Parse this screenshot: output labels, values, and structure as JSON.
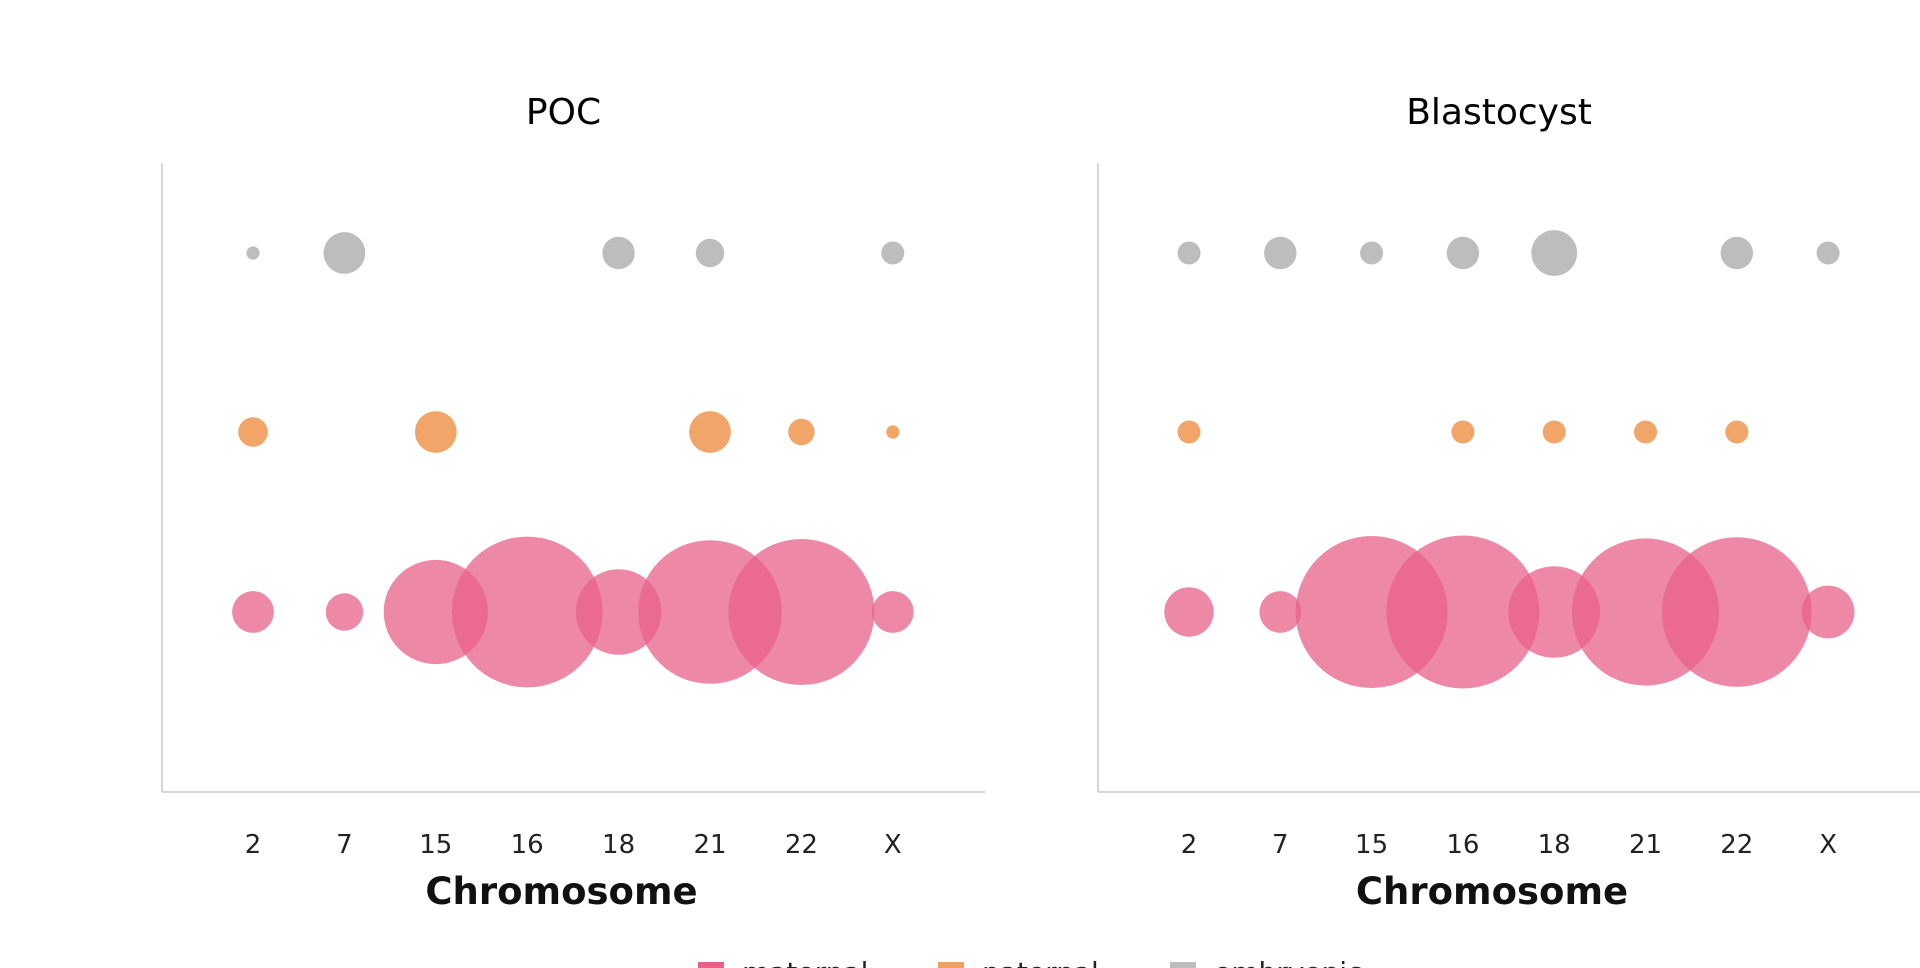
{
  "colors": {
    "maternal": "#e8608a",
    "paternal": "#f0a060",
    "embryonic": "#bdbdbd",
    "axis": "#c8c8c8"
  },
  "legend": {
    "items": [
      {
        "key": "maternal",
        "label": "maternal"
      },
      {
        "key": "paternal",
        "label": "paternal"
      },
      {
        "key": "embryonic",
        "label": "embryonic"
      }
    ]
  },
  "chart_data": [
    {
      "type": "bubble",
      "title": "POC",
      "xlabel": "Chromosome",
      "categories": [
        "2",
        "7",
        "15",
        "16",
        "18",
        "21",
        "22",
        "X"
      ],
      "grid": false,
      "legend_position": "bottom",
      "series": [
        {
          "key": "maternal",
          "name": "maternal",
          "sizes": [
            5,
            4,
            31,
            65,
            21,
            59,
            61,
            5
          ]
        },
        {
          "key": "paternal",
          "name": "paternal",
          "sizes": [
            2.5,
            0,
            5,
            0,
            0,
            5,
            2,
            0.5
          ]
        },
        {
          "key": "embryonic",
          "name": "embryonic",
          "sizes": [
            0.5,
            5,
            0,
            0,
            3,
            2.3,
            0,
            1.5
          ]
        }
      ]
    },
    {
      "type": "bubble",
      "title": "Blastocyst",
      "xlabel": "Chromosome",
      "categories": [
        "2",
        "7",
        "15",
        "16",
        "18",
        "21",
        "22",
        "X"
      ],
      "grid": false,
      "legend_position": "bottom",
      "series": [
        {
          "key": "maternal",
          "name": "maternal",
          "sizes": [
            7,
            5,
            66,
            67,
            24,
            62,
            64,
            8
          ]
        },
        {
          "key": "paternal",
          "name": "paternal",
          "sizes": [
            1.5,
            0,
            0,
            1.5,
            1.5,
            1.5,
            1.5,
            0
          ]
        },
        {
          "key": "embryonic",
          "name": "embryonic",
          "sizes": [
            1.5,
            3,
            1.5,
            3,
            6,
            0,
            3,
            1.5
          ]
        }
      ]
    }
  ]
}
